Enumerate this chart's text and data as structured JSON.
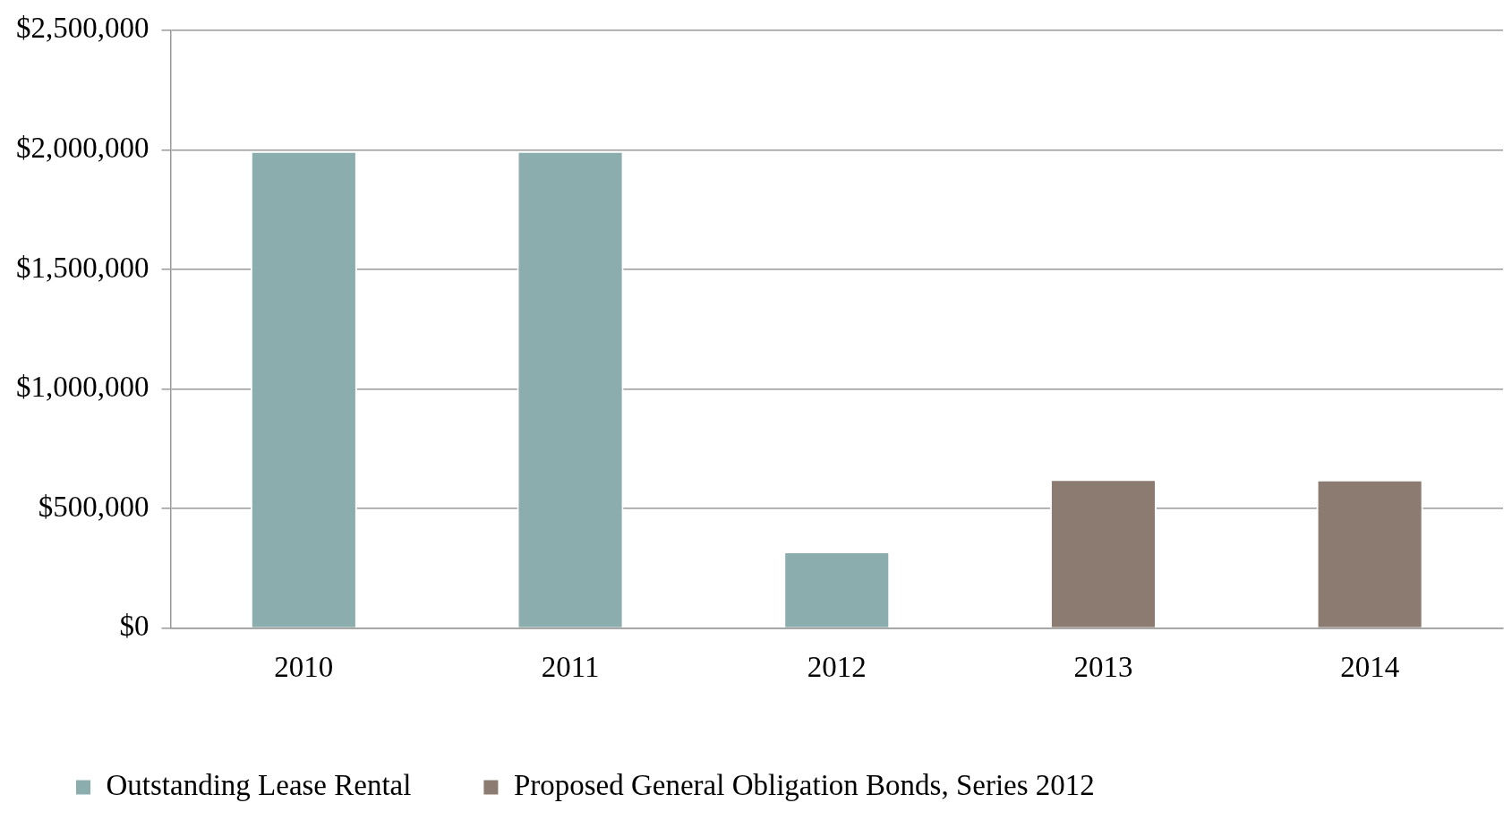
{
  "chart_data": {
    "type": "bar",
    "stacked": true,
    "categories": [
      "2010",
      "2011",
      "2012",
      "2013",
      "2014"
    ],
    "series": [
      {
        "name": "Outstanding Lease Rental",
        "color": "#8badad",
        "values": [
          1995000,
          1995000,
          320000,
          null,
          null
        ]
      },
      {
        "name": "Proposed General Obligation Bonds, Series 2012",
        "color": "#8b7b70",
        "values": [
          null,
          null,
          null,
          622000,
          620000
        ]
      }
    ],
    "ylim": [
      0,
      2500000
    ],
    "yticks": [
      {
        "value": 0,
        "label": "$0"
      },
      {
        "value": 500000,
        "label": "$500,000"
      },
      {
        "value": 1000000,
        "label": "$1,000,000"
      },
      {
        "value": 1500000,
        "label": "$1,500,000"
      },
      {
        "value": 2000000,
        "label": "$2,000,000"
      },
      {
        "value": 2500000,
        "label": "$2,500,000"
      }
    ],
    "grid": "y",
    "legend": "bottom"
  }
}
